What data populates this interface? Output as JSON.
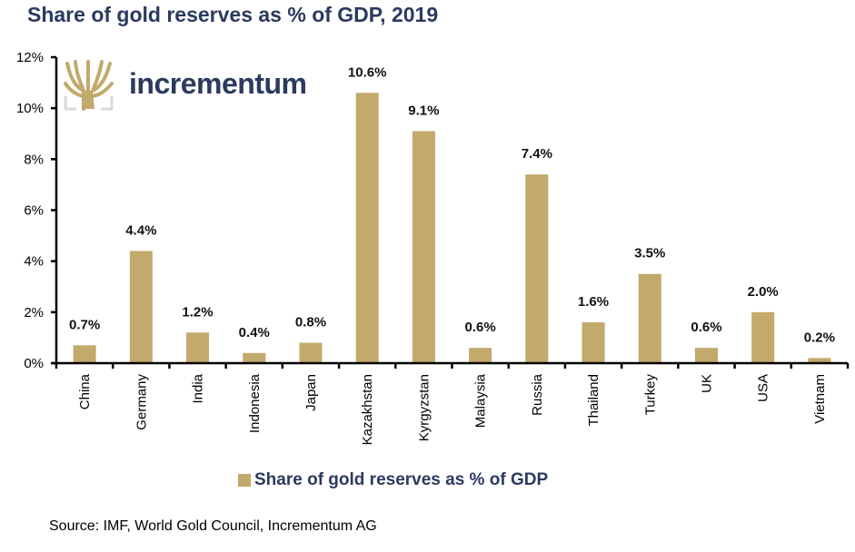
{
  "title": "Share of gold reserves as % of GDP, 2019",
  "logo": {
    "text": "incrementum",
    "icon": "tree-logo-icon"
  },
  "colors": {
    "bar": "#c2a96c",
    "title": "#2b3a5e",
    "axis": "#000000",
    "logo_frame": "#d9d9d9"
  },
  "source": "Source: IMF, World Gold Council, Incrementum AG",
  "chart_data": {
    "type": "bar",
    "title": "Share of gold reserves as % of GDP, 2019",
    "xlabel": "",
    "ylabel": "",
    "ylim": [
      0,
      12
    ],
    "yticks": [
      0,
      2,
      4,
      6,
      8,
      10,
      12
    ],
    "ytick_labels": [
      "0%",
      "2%",
      "4%",
      "6%",
      "8%",
      "10%",
      "12%"
    ],
    "grid": false,
    "legend": {
      "placement": "bottom-center",
      "entries": [
        "Share of gold reserves as % of GDP"
      ]
    },
    "categories": [
      "China",
      "Germany",
      "India",
      "Indonesia",
      "Japan",
      "Kazakhstan",
      "Kyrgyzstan",
      "Malaysia",
      "Russia",
      "Thailand",
      "Turkey",
      "UK",
      "USA",
      "Vietnam"
    ],
    "series": [
      {
        "name": "Share of gold reserves as % of GDP",
        "values": [
          0.7,
          4.4,
          1.2,
          0.4,
          0.8,
          10.6,
          9.1,
          0.6,
          7.4,
          1.6,
          3.5,
          0.6,
          2.0,
          0.2
        ],
        "data_labels": [
          "0.7%",
          "4.4%",
          "1.2%",
          "0.4%",
          "0.8%",
          "10.6%",
          "9.1%",
          "0.6%",
          "7.4%",
          "1.6%",
          "3.5%",
          "0.6%",
          "2.0%",
          "0.2%"
        ]
      }
    ]
  }
}
